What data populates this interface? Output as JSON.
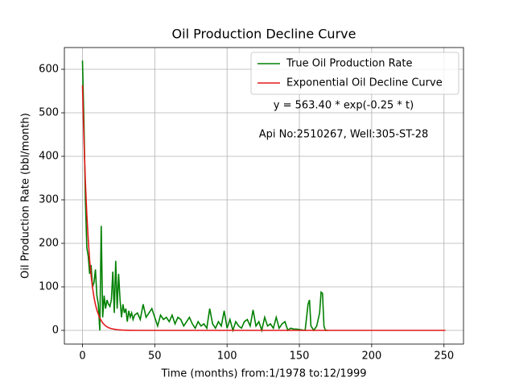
{
  "chart_data": {
    "type": "line",
    "title": "Oil Production Decline Curve",
    "xlabel": "Time (months) from:1/1978 to:12/1999",
    "ylabel": "Oil Production Rate (bbl/month)",
    "annotations": [
      "y = 563.40 * exp(-0.25 * t)",
      "Api No:2510267, Well:305-ST-28"
    ],
    "xlim": [
      -12.5,
      263.5
    ],
    "ylim": [
      -31.5,
      650
    ],
    "xticks": [
      0,
      50,
      100,
      150,
      200,
      250
    ],
    "yticks": [
      0,
      100,
      200,
      300,
      400,
      500,
      600
    ],
    "grid": true,
    "legend": "upper right",
    "series": [
      {
        "name": "True Oil Production Rate",
        "color": "#008000",
        "x": [
          0,
          1,
          2,
          3,
          4,
          5,
          6,
          7,
          8,
          9,
          10,
          11,
          12,
          13,
          14,
          15,
          16,
          17,
          18,
          19,
          20,
          21,
          22,
          23,
          24,
          25,
          26,
          27,
          28,
          29,
          30,
          31,
          32,
          33,
          34,
          35,
          36,
          38,
          40,
          42,
          44,
          46,
          48,
          50,
          52,
          54,
          56,
          58,
          60,
          62,
          64,
          66,
          68,
          70,
          72,
          74,
          76,
          78,
          80,
          82,
          84,
          86,
          88,
          90,
          92,
          94,
          96,
          98,
          100,
          102,
          104,
          106,
          108,
          110,
          112,
          114,
          116,
          118,
          120,
          122,
          124,
          126,
          128,
          130,
          132,
          134,
          136,
          138,
          140,
          142,
          144,
          146,
          148,
          154,
          156,
          157,
          158,
          160,
          162,
          164,
          165,
          166,
          167,
          168,
          170
        ],
        "values": [
          620,
          480,
          300,
          190,
          170,
          130,
          150,
          100,
          110,
          140,
          80,
          60,
          0,
          240,
          30,
          80,
          50,
          70,
          60,
          55,
          70,
          135,
          40,
          160,
          50,
          130,
          70,
          30,
          60,
          40,
          50,
          20,
          45,
          30,
          40,
          25,
          35,
          40,
          25,
          60,
          30,
          40,
          50,
          30,
          10,
          35,
          25,
          30,
          20,
          35,
          15,
          30,
          25,
          10,
          20,
          30,
          15,
          5,
          20,
          10,
          15,
          5,
          50,
          15,
          5,
          20,
          10,
          45,
          5,
          25,
          0,
          20,
          10,
          5,
          20,
          25,
          10,
          47,
          10,
          20,
          0,
          30,
          10,
          15,
          5,
          30,
          5,
          15,
          20,
          0,
          5,
          3,
          3,
          0,
          60,
          70,
          10,
          0,
          10,
          40,
          88,
          85,
          10,
          0,
          0
        ]
      },
      {
        "name": "Exponential Oil Decline Curve",
        "color": "#e31a1c",
        "x": [
          0,
          1,
          2,
          3,
          4,
          5,
          6,
          7,
          8,
          9,
          10,
          12,
          14,
          16,
          18,
          20,
          24,
          28,
          32,
          40,
          251
        ],
        "values": [
          563.4,
          438.8,
          341.7,
          266.1,
          207.3,
          161.4,
          125.7,
          97.9,
          76.2,
          59.4,
          46.2,
          28.1,
          17.0,
          10.3,
          6.3,
          3.8,
          1.4,
          0.5,
          0.2,
          0.0,
          0.0
        ]
      }
    ]
  }
}
